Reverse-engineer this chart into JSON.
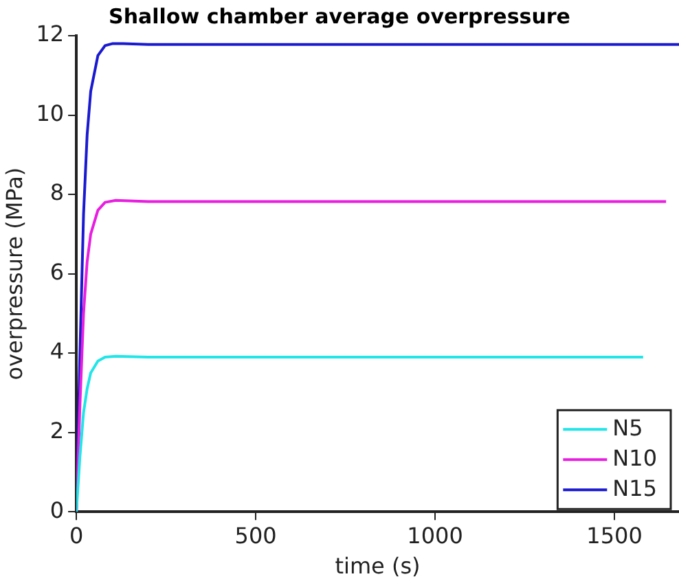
{
  "chart_data": {
    "type": "line",
    "title": "Shallow chamber average overpressure",
    "xlabel": "time (s)",
    "ylabel": "overpressure (MPa)",
    "xlim": [
      0,
      1680
    ],
    "xticks": [
      0,
      500,
      1000,
      1500
    ],
    "ylim": [
      0,
      12
    ],
    "yticks": [
      0,
      2,
      4,
      6,
      8,
      10,
      12
    ],
    "grid": false,
    "legend": "bottom right",
    "series": [
      {
        "name": "N5",
        "color": "#22e5e8",
        "x": [
          0,
          10,
          20,
          30,
          40,
          60,
          80,
          110,
          200,
          1580
        ],
        "values": [
          0,
          1.4,
          2.5,
          3.1,
          3.5,
          3.8,
          3.9,
          3.92,
          3.9,
          3.9
        ]
      },
      {
        "name": "N10",
        "color": "#e81ee0",
        "x": [
          0,
          10,
          20,
          30,
          40,
          60,
          80,
          110,
          200,
          1644
        ],
        "values": [
          0,
          2.7,
          5.0,
          6.3,
          7.0,
          7.6,
          7.8,
          7.85,
          7.82,
          7.82
        ]
      },
      {
        "name": "N15",
        "color": "#1a1ad0",
        "x": [
          0,
          10,
          20,
          30,
          40,
          60,
          80,
          100,
          130,
          200,
          1680
        ],
        "values": [
          0,
          4.0,
          7.5,
          9.5,
          10.6,
          11.5,
          11.75,
          11.8,
          11.8,
          11.78,
          11.78
        ]
      }
    ]
  }
}
